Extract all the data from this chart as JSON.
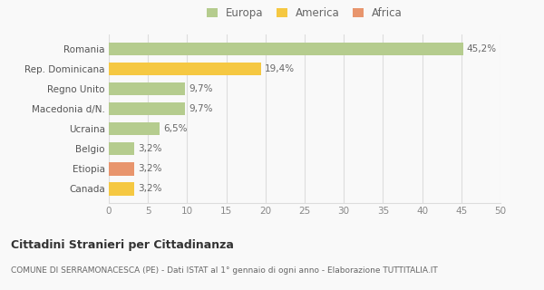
{
  "categories": [
    "Canada",
    "Etiopia",
    "Belgio",
    "Ucraina",
    "Macedonia d/N.",
    "Regno Unito",
    "Rep. Dominicana",
    "Romania"
  ],
  "values": [
    3.2,
    3.2,
    3.2,
    6.5,
    9.7,
    9.7,
    19.4,
    45.2
  ],
  "labels": [
    "3,2%",
    "3,2%",
    "3,2%",
    "6,5%",
    "9,7%",
    "9,7%",
    "19,4%",
    "45,2%"
  ],
  "colors": [
    "#f5c842",
    "#e8956d",
    "#b5cc8e",
    "#b5cc8e",
    "#b5cc8e",
    "#b5cc8e",
    "#f5c842",
    "#b5cc8e"
  ],
  "legend_labels": [
    "Europa",
    "America",
    "Africa"
  ],
  "legend_colors": [
    "#b5cc8e",
    "#f5c842",
    "#e8956d"
  ],
  "title": "Cittadini Stranieri per Cittadinanza",
  "subtitle": "COMUNE DI SERRAMONACESCA (PE) - Dati ISTAT al 1° gennaio di ogni anno - Elaborazione TUTTITALIA.IT",
  "xlim": [
    0,
    50
  ],
  "xticks": [
    0,
    5,
    10,
    15,
    20,
    25,
    30,
    35,
    40,
    45,
    50
  ],
  "background_color": "#f9f9f9",
  "grid_color": "#dddddd"
}
